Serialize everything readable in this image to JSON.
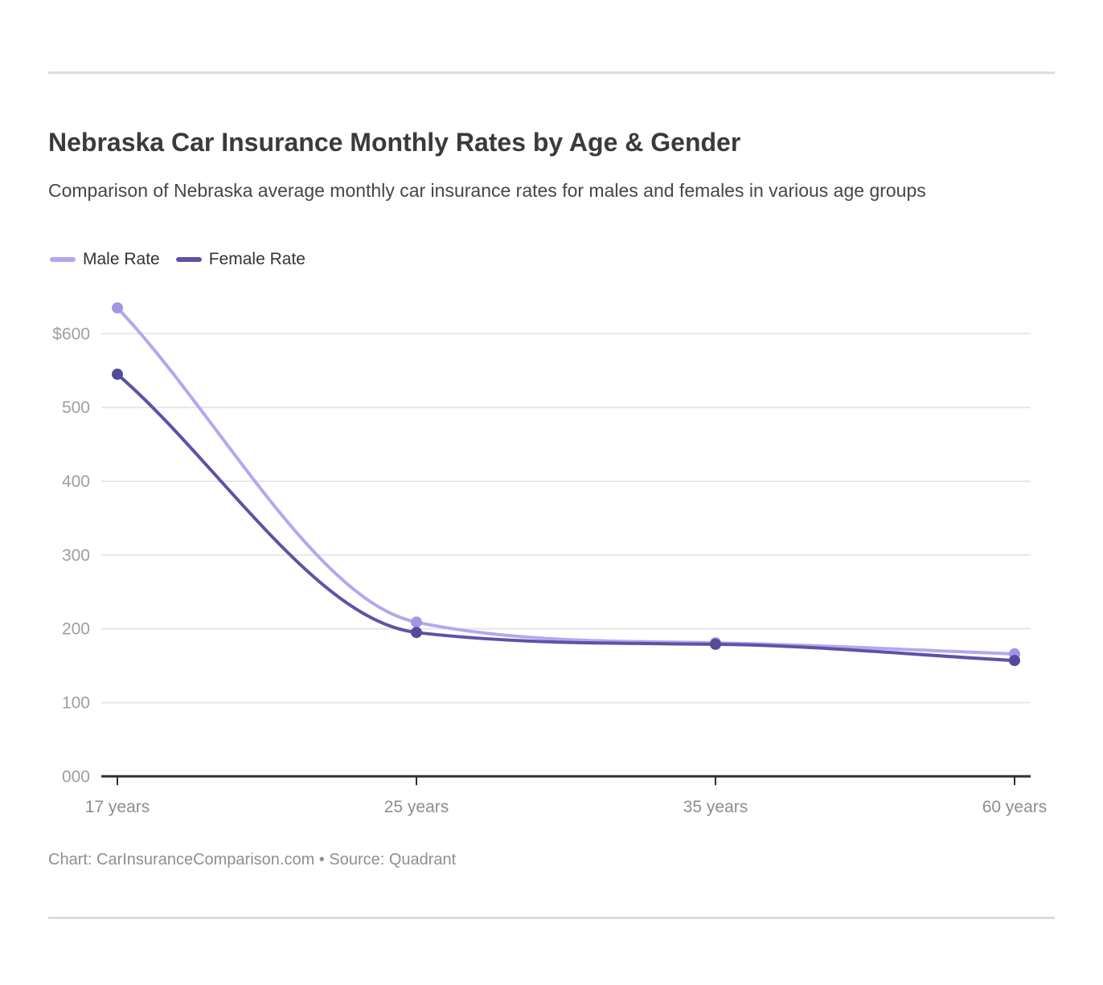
{
  "page": {
    "title": "Nebraska Car Insurance Monthly Rates by Age & Gender",
    "subtitle": "Comparison of Nebraska average monthly car insurance rates for males and females in various age groups",
    "footer": "Chart: CarInsuranceComparison.com • Source: Quadrant"
  },
  "legend": [
    {
      "label": "Male Rate",
      "color": "#b3a8ee"
    },
    {
      "label": "Female Rate",
      "color": "#5b54a5"
    }
  ],
  "chart_data": {
    "type": "line",
    "title": "Nebraska Car Insurance Monthly Rates by Age & Gender",
    "subtitle": "Comparison of Nebraska average monthly car insurance rates for males and females in various age groups",
    "categories": [
      "17 years",
      "25 years",
      "35 years",
      "60 years"
    ],
    "series": [
      {
        "name": "Male Rate",
        "values": [
          635,
          209,
          181,
          166
        ],
        "color": "#b3a8ee",
        "point_color": "#a295e2"
      },
      {
        "name": "Female Rate",
        "values": [
          545,
          195,
          179,
          157
        ],
        "color": "#5b54a5",
        "point_color": "#544b9c"
      }
    ],
    "x_axis": {
      "tick_labels": [
        "17 years",
        "25 years",
        "35 years",
        "60 years"
      ]
    },
    "y_axis": {
      "tick_labels": [
        "$600",
        "500",
        "400",
        "300",
        "200",
        "100",
        "000"
      ],
      "tick_values": [
        600,
        500,
        400,
        300,
        200,
        100,
        0
      ],
      "range": [
        0,
        650
      ],
      "unit": "USD per month"
    },
    "grid": true,
    "curve": "smooth-monotone",
    "legend_position": "top-left",
    "colors": {
      "grid_line": "#e7e7e7",
      "axis_line": "#303030",
      "y_tick_label": "#9e9e9e",
      "x_tick_label": "#8d8d8d"
    },
    "attribution": "Chart: CarInsuranceComparison.com • Source: Quadrant"
  }
}
